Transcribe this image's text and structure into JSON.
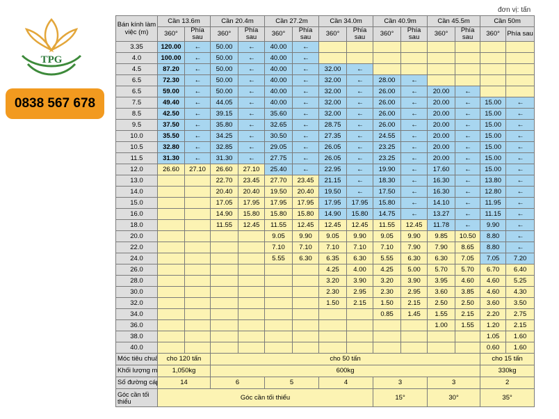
{
  "company": {
    "logo_text": "TPG",
    "phone": "0838 567 678"
  },
  "unit_note": "đơn vị: tấn",
  "table": {
    "radius_header": "Bán kính làm việc (m)",
    "booms": [
      "Cần 13.6m",
      "Cần 20.4m",
      "Cần 27.2m",
      "Cần 34.0m",
      "Cần 40.9m",
      "Cần 45.5m",
      "Cần 50m"
    ],
    "sub_360": "360°",
    "sub_rear": "Phía sau",
    "arrow": "←",
    "rows": [
      [
        "3.35",
        "120.00",
        "←",
        "50.00",
        "←",
        "40.00",
        "←",
        "",
        "",
        "",
        "",
        "",
        "",
        "",
        ""
      ],
      [
        "4.0",
        "100.00",
        "←",
        "50.00",
        "←",
        "40.00",
        "←",
        "",
        "",
        "",
        "",
        "",
        "",
        "",
        ""
      ],
      [
        "4.5",
        "87.20",
        "←",
        "50.00",
        "←",
        "40.00",
        "←",
        "32.00",
        "←",
        "",
        "",
        "",
        "",
        "",
        ""
      ],
      [
        "6.5",
        "72.30",
        "←",
        "50.00",
        "←",
        "40.00",
        "←",
        "32.00",
        "←",
        "28.00",
        "←",
        "",
        "",
        "",
        ""
      ],
      [
        "6.5",
        "59.00",
        "←",
        "50.00",
        "←",
        "40.00",
        "←",
        "32.00",
        "←",
        "26.00",
        "←",
        "20.00",
        "←",
        "",
        ""
      ],
      [
        "7.5",
        "49.40",
        "←",
        "44.05",
        "←",
        "40.00",
        "←",
        "32.00",
        "←",
        "26.00",
        "←",
        "20.00",
        "←",
        "15.00",
        "←"
      ],
      [
        "8.5",
        "42.50",
        "←",
        "39.15",
        "←",
        "35.60",
        "←",
        "32.00",
        "←",
        "26.00",
        "←",
        "20.00",
        "←",
        "15.00",
        "←"
      ],
      [
        "9.5",
        "37.50",
        "←",
        "35.80",
        "←",
        "32.65",
        "←",
        "28.75",
        "←",
        "26.00",
        "←",
        "20.00",
        "←",
        "15.00",
        "←"
      ],
      [
        "10.0",
        "35.50",
        "←",
        "34.25",
        "←",
        "30.50",
        "←",
        "27.35",
        "←",
        "24.55",
        "←",
        "20.00",
        "←",
        "15.00",
        "←"
      ],
      [
        "10.5",
        "32.80",
        "←",
        "32.85",
        "←",
        "29.05",
        "←",
        "26.05",
        "←",
        "23.25",
        "←",
        "20.00",
        "←",
        "15.00",
        "←"
      ],
      [
        "11.5",
        "31.30",
        "←",
        "31.30",
        "←",
        "27.75",
        "←",
        "26.05",
        "←",
        "23.25",
        "←",
        "20.00",
        "←",
        "15.00",
        "←"
      ],
      [
        "12.0",
        "26.60",
        "27.10",
        "26.60",
        "27.10",
        "25.40",
        "←",
        "22.95",
        "←",
        "19.90",
        "←",
        "17.60",
        "←",
        "15.00",
        "←"
      ],
      [
        "13.0",
        "",
        "",
        "22.70",
        "23.45",
        "27.70",
        "23.45",
        "21.15",
        "←",
        "18.30",
        "←",
        "16.30",
        "←",
        "13.80",
        "←"
      ],
      [
        "14.0",
        "",
        "",
        "20.40",
        "20.40",
        "19.50",
        "20.40",
        "19.50",
        "←",
        "17.50",
        "←",
        "16.30",
        "←",
        "12.80",
        "←"
      ],
      [
        "15.0",
        "",
        "",
        "17.05",
        "17.95",
        "17.95",
        "17.95",
        "17.95",
        "17.95",
        "15.80",
        "←",
        "14.10",
        "←",
        "11.95",
        "←"
      ],
      [
        "16.0",
        "",
        "",
        "14.90",
        "15.80",
        "15.80",
        "15.80",
        "14.90",
        "15.80",
        "14.75",
        "←",
        "13.27",
        "←",
        "11.15",
        "←"
      ],
      [
        "18.0",
        "",
        "",
        "11.55",
        "12.45",
        "11.55",
        "12.45",
        "12.45",
        "12.45",
        "11.55",
        "12.45",
        "11.78",
        "←",
        "9.90",
        "←"
      ],
      [
        "20.0",
        "",
        "",
        "",
        "",
        "9.05",
        "9.90",
        "9.05",
        "9.90",
        "9.05",
        "9.90",
        "9.85",
        "10.50",
        "8.80",
        "←"
      ],
      [
        "22.0",
        "",
        "",
        "",
        "",
        "7.10",
        "7.10",
        "7.10",
        "7.10",
        "7.10",
        "7.90",
        "7.90",
        "8.65",
        "8.80",
        "←"
      ],
      [
        "24.0",
        "",
        "",
        "",
        "",
        "5.55",
        "6.30",
        "6.35",
        "6.30",
        "5.55",
        "6.30",
        "6.30",
        "7.05",
        "7.05",
        "7.20"
      ],
      [
        "26.0",
        "",
        "",
        "",
        "",
        "",
        "",
        "4.25",
        "4.00",
        "4.25",
        "5.00",
        "5.70",
        "5.70",
        "6.70",
        "6.40"
      ],
      [
        "28.0",
        "",
        "",
        "",
        "",
        "",
        "",
        "3.20",
        "3.90",
        "3.20",
        "3.90",
        "3.95",
        "4.60",
        "4.60",
        "5.25"
      ],
      [
        "30.0",
        "",
        "",
        "",
        "",
        "",
        "",
        "2.30",
        "2.95",
        "2.30",
        "2.95",
        "3.60",
        "3.85",
        "4.60",
        "4.30"
      ],
      [
        "32.0",
        "",
        "",
        "",
        "",
        "",
        "",
        "1.50",
        "2.15",
        "1.50",
        "2.15",
        "2.50",
        "2.50",
        "3.60",
        "3.50"
      ],
      [
        "34.0",
        "",
        "",
        "",
        "",
        "",
        "",
        "",
        "",
        "0.85",
        "1.45",
        "1.55",
        "2.15",
        "2.20",
        "2.75"
      ],
      [
        "36.0",
        "",
        "",
        "",
        "",
        "",
        "",
        "",
        "",
        "",
        "",
        "1.00",
        "1.55",
        "1.20",
        "2.15"
      ],
      [
        "38.0",
        "",
        "",
        "",
        "",
        "",
        "",
        "",
        "",
        "",
        "",
        "",
        "",
        "1.05",
        "1.60"
      ],
      [
        "40.0",
        "",
        "",
        "",
        "",
        "",
        "",
        "",
        "",
        "",
        "",
        "",
        "",
        "0.60",
        "1.60"
      ]
    ],
    "blue_from": [
      1,
      1,
      1,
      1,
      1,
      1,
      1,
      1,
      1,
      1,
      1,
      99,
      99,
      99,
      99,
      99,
      99,
      99,
      99,
      99,
      99,
      99,
      99,
      99,
      99,
      99,
      99,
      99
    ],
    "footer": {
      "hook_label": "Móc tiêu chuẩn",
      "hook_a": "cho 120 tấn",
      "hook_b": "cho 50 tấn",
      "hook_c": "cho 15 tấn",
      "weight_label": "Khối lượng móc",
      "weight_a": "1,050kg",
      "weight_b": "600kg",
      "weight_c": "330kg",
      "cable_label": "Số đường cáp",
      "cable_values": [
        "14",
        "6",
        "5",
        "4",
        "3",
        "3",
        "2"
      ],
      "angle_label": "Góc cần tối thiểu",
      "angle_text": "Góc cần tối thiểu",
      "angle_values": [
        "15°",
        "30°",
        "35°"
      ]
    }
  }
}
